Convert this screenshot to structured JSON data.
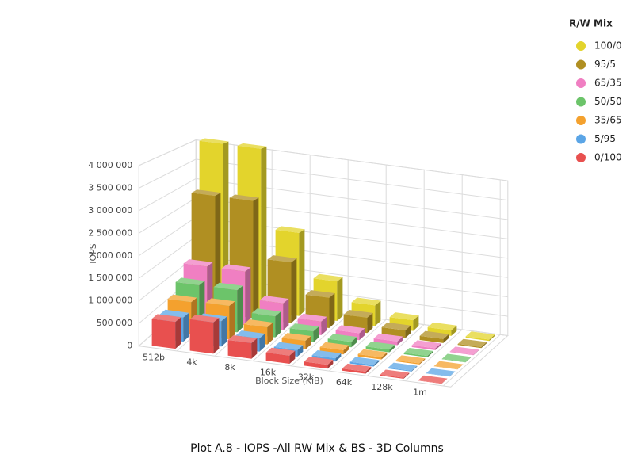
{
  "chart_data": {
    "type": "bar3d",
    "title": "Plot A.8 - IOPS -All RW Mix & BS - 3D Columns",
    "x_label": "Block Size (KiB)",
    "y_label": "IOPS",
    "legend_title": "R/W Mix",
    "legend_position": "top-right",
    "grid": true,
    "categories": [
      "512b",
      "4k",
      "8k",
      "16k",
      "32k",
      "64k",
      "128k",
      "1m"
    ],
    "ylim": [
      0,
      4000000
    ],
    "yticks": [
      0,
      {
        "value": 500000,
        "label": "500 000"
      },
      {
        "value": 1000000,
        "label": "1 000 000"
      },
      {
        "value": 1500000,
        "label": "1 500 000"
      },
      {
        "value": 2000000,
        "label": "2 000 000"
      },
      {
        "value": 2500000,
        "label": "2 500 000"
      },
      {
        "value": 3000000,
        "label": "3 000 000"
      },
      {
        "value": 3500000,
        "label": "3 500 000"
      },
      {
        "value": 4000000,
        "label": "4 000 000"
      }
    ],
    "series": [
      {
        "name": "100/0",
        "color": "#e3d42c",
        "values": [
          4100000,
          4100000,
          2100000,
          1000000,
          520000,
          270000,
          140000,
          35000
        ]
      },
      {
        "name": "95/5",
        "color": "#b08f22",
        "values": [
          2900000,
          2900000,
          1500000,
          750000,
          380000,
          190000,
          100000,
          25000
        ]
      },
      {
        "name": "65/35",
        "color": "#f07fc2",
        "values": [
          1300000,
          1300000,
          650000,
          330000,
          170000,
          90000,
          45000,
          12000
        ]
      },
      {
        "name": "50/50",
        "color": "#6cc46a",
        "values": [
          1000000,
          1000000,
          500000,
          260000,
          130000,
          65000,
          33000,
          9000
        ]
      },
      {
        "name": "35/65",
        "color": "#f4a12e",
        "values": [
          750000,
          780000,
          400000,
          200000,
          100000,
          50000,
          25000,
          6000
        ]
      },
      {
        "name": "5/95",
        "color": "#5ba5e6",
        "values": [
          550000,
          580000,
          300000,
          150000,
          75000,
          38000,
          19000,
          5000
        ]
      },
      {
        "name": "0/100",
        "color": "#e8504f",
        "values": [
          600000,
          700000,
          350000,
          180000,
          90000,
          45000,
          22000,
          5000
        ]
      }
    ]
  }
}
